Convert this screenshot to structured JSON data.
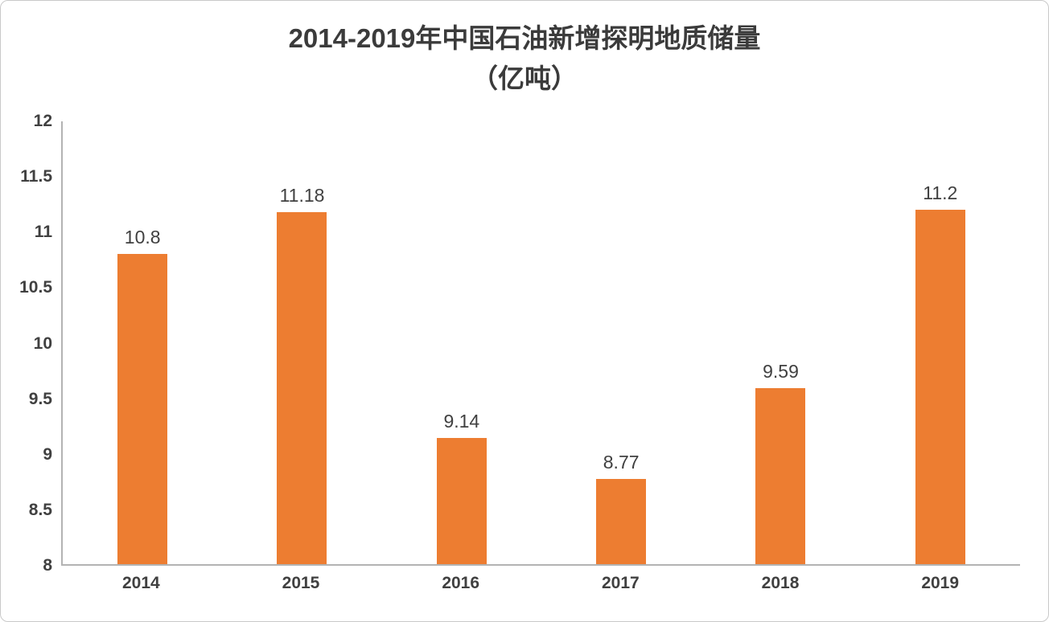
{
  "chart_data": {
    "type": "bar",
    "title_line1": "2014-2019年中国石油新增探明地质储量",
    "title_line2": "（亿吨）",
    "categories": [
      "2014",
      "2015",
      "2016",
      "2017",
      "2018",
      "2019"
    ],
    "values": [
      10.8,
      11.18,
      9.14,
      8.77,
      9.59,
      11.2
    ],
    "data_labels": [
      "10.8",
      "11.18",
      "9.14",
      "8.77",
      "9.59",
      "11.2"
    ],
    "y_ticks": [
      12,
      11.5,
      11,
      10.5,
      10,
      9.5,
      9,
      8.5,
      8
    ],
    "y_tick_labels": [
      "12",
      "11.5",
      "11",
      "10.5",
      "10",
      "9.5",
      "9",
      "8.5",
      "8"
    ],
    "ylim": [
      8,
      12
    ],
    "xlabel": "",
    "ylabel": "",
    "bar_color": "#ED7D31",
    "grid": false,
    "legend": "none"
  }
}
